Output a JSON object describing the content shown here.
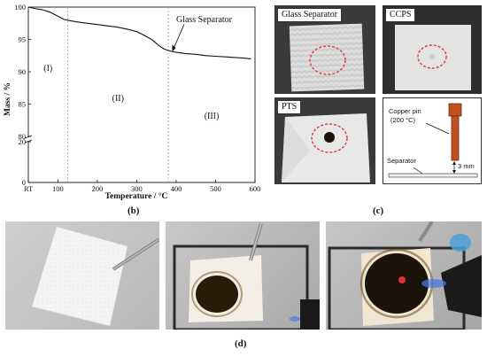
{
  "chart_data": {
    "type": "line",
    "xlabel": "Temperature / °C",
    "ylabel": "Mass / %",
    "x_ticks": [
      "RT",
      "100",
      "200",
      "300",
      "400",
      "500",
      "600"
    ],
    "x_tick_values": [
      25,
      100,
      200,
      300,
      400,
      500,
      600
    ],
    "y_ticks_top": [
      "100",
      "95",
      "90",
      "85",
      "80"
    ],
    "y_ticks_bottom": [
      "20",
      "0"
    ],
    "ylim_top": [
      80,
      100
    ],
    "ylim_bottom": [
      0,
      20
    ],
    "xlim": [
      25,
      600
    ],
    "grid": false,
    "regions": [
      "(I)",
      "(II)",
      "(III)"
    ],
    "region_boundaries": [
      125,
      380
    ],
    "series": [
      {
        "name": "Glass Separator",
        "x": [
          25,
          40,
          60,
          80,
          100,
          115,
          130,
          150,
          175,
          200,
          225,
          250,
          275,
          300,
          320,
          340,
          355,
          370,
          385,
          400,
          425,
          450,
          475,
          500,
          525,
          550,
          575,
          590
        ],
        "y": [
          100,
          99.8,
          99.6,
          99.2,
          98.6,
          98.1,
          97.9,
          97.7,
          97.5,
          97.3,
          97.1,
          96.9,
          96.6,
          96.2,
          95.6,
          94.9,
          94.1,
          93.5,
          93.2,
          93.0,
          92.8,
          92.7,
          92.5,
          92.4,
          92.3,
          92.2,
          92.1,
          92.0
        ]
      }
    ],
    "annotation": "Glass Separator"
  },
  "labels": {
    "b": "(b)",
    "c": "(c)",
    "d": "(d)"
  },
  "photos_c": {
    "glass_separator": "Glass Separator",
    "ccps": "CCPS",
    "pts": "PTS",
    "schematic": {
      "copper_pin": "Copper pin",
      "temp": "(200 °C)",
      "separator": "Separator",
      "gap": "3 mm"
    }
  },
  "colors": {
    "dashed_circle": "#e0383a",
    "copper": "#c0501e",
    "burn": "#1c1208"
  }
}
